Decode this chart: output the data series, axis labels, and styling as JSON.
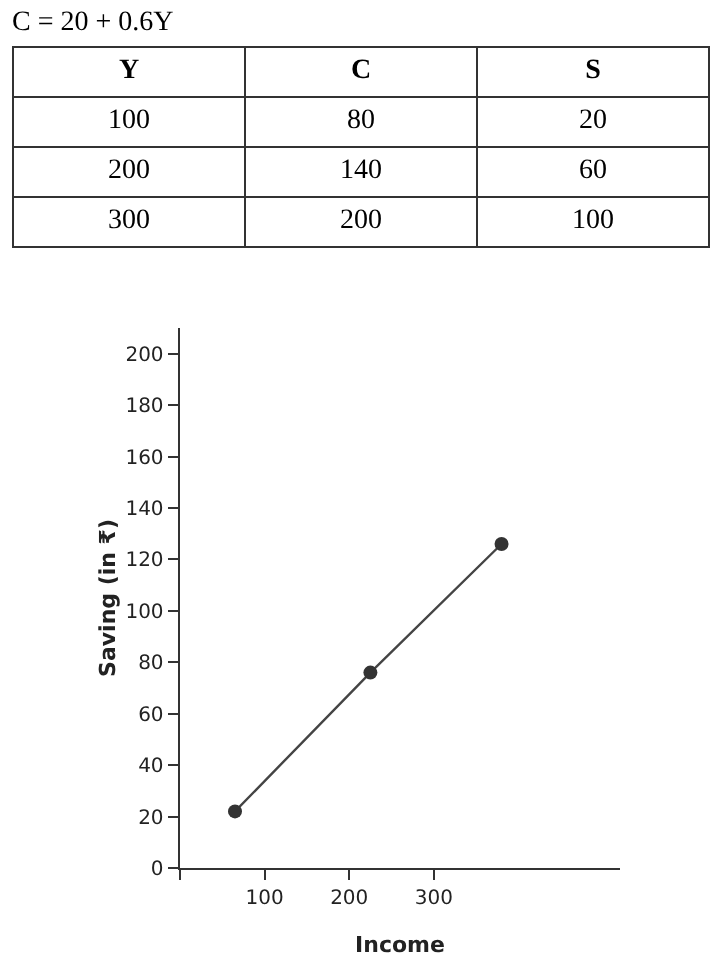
{
  "chart_data": [
    {
      "type": "other",
      "title": "C = 20 + 0.6Y",
      "categories": [
        "Y",
        "C",
        "S"
      ],
      "annotations": [
        "100",
        "80",
        "20",
        "200",
        "140",
        "60",
        "300",
        "200",
        "100"
      ]
    },
    {
      "type": "line",
      "x": [
        65,
        225,
        380
      ],
      "values": [
        22,
        76,
        126
      ],
      "color": "#444444",
      "marker": "circle",
      "line_style": "solid",
      "xlim": [
        0,
        520
      ],
      "ylim": [
        0,
        210
      ],
      "xticks": [
        {
          "value": 0,
          "label": null
        },
        100,
        200,
        300
      ],
      "yticks": [
        0,
        20,
        40,
        60,
        80,
        100,
        120,
        140,
        160,
        180,
        200
      ],
      "xlabel": "Income",
      "ylabel": "Saving (in ₹)"
    }
  ]
}
